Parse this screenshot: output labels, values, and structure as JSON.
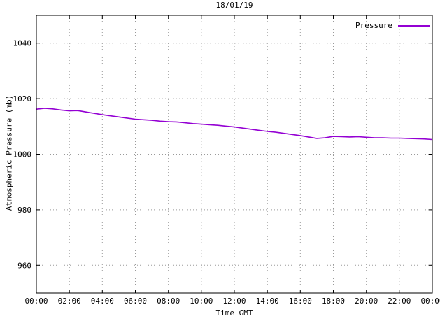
{
  "chart_data": {
    "type": "line",
    "title": "18/01/19",
    "xlabel": "Time GMT",
    "ylabel": "Atmospheric Pressure (mb)",
    "xlim": [
      0,
      24
    ],
    "ylim": [
      950,
      1050
    ],
    "x_ticks": [
      0,
      2,
      4,
      6,
      8,
      10,
      12,
      14,
      16,
      18,
      20,
      22,
      24
    ],
    "x_tick_labels": [
      "00:00",
      "02:00",
      "04:00",
      "06:00",
      "08:00",
      "10:00",
      "12:00",
      "14:00",
      "16:00",
      "18:00",
      "20:00",
      "22:00",
      "00:00"
    ],
    "y_ticks": [
      960,
      980,
      1000,
      1020,
      1040
    ],
    "grid": true,
    "legend_position": "top-right",
    "series": [
      {
        "name": "Pressure",
        "color": "#9400d3",
        "x": [
          0,
          0.5,
          1,
          1.5,
          2,
          2.5,
          3,
          3.5,
          4,
          4.5,
          5,
          5.5,
          6,
          6.5,
          7,
          7.5,
          8,
          8.5,
          9,
          9.5,
          10,
          10.5,
          11,
          11.5,
          12,
          12.5,
          13,
          13.5,
          14,
          14.5,
          15,
          15.5,
          16,
          16.5,
          17,
          17.5,
          18,
          18.5,
          19,
          19.5,
          20,
          20.5,
          21,
          21.5,
          22,
          22.5,
          23,
          23.5,
          24
        ],
        "y": [
          1016.2,
          1016.5,
          1016.3,
          1015.9,
          1015.6,
          1015.7,
          1015.2,
          1014.7,
          1014.2,
          1013.8,
          1013.4,
          1013.0,
          1012.6,
          1012.4,
          1012.2,
          1011.9,
          1011.7,
          1011.6,
          1011.3,
          1011.0,
          1010.8,
          1010.6,
          1010.4,
          1010.1,
          1009.8,
          1009.4,
          1009.0,
          1008.6,
          1008.2,
          1007.9,
          1007.5,
          1007.1,
          1006.7,
          1006.2,
          1005.7,
          1005.9,
          1006.4,
          1006.3,
          1006.2,
          1006.3,
          1006.1,
          1005.9,
          1005.9,
          1005.8,
          1005.8,
          1005.7,
          1005.6,
          1005.5,
          1005.3
        ]
      }
    ]
  }
}
